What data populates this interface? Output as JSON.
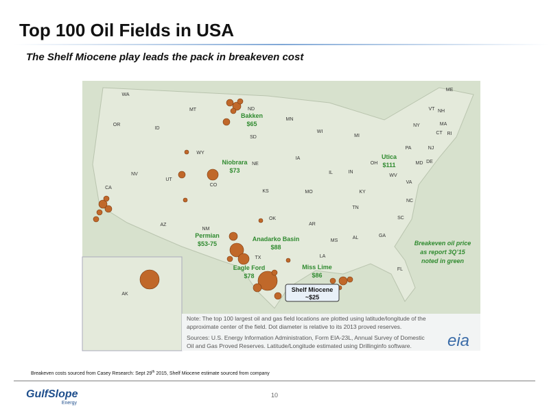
{
  "header": {
    "title": "Top 100 Oil Fields in USA",
    "subtitle": "The Shelf Miocene play leads the pack in breakeven cost"
  },
  "map": {
    "states": [
      "WA",
      "MT",
      "ND",
      "OR",
      "ID",
      "SD",
      "MN",
      "WI",
      "MI",
      "NY",
      "VT",
      "NH",
      "ME",
      "MA",
      "CT",
      "RI",
      "WY",
      "NE",
      "IA",
      "PA",
      "NJ",
      "OH",
      "MD",
      "DE",
      "NV",
      "UT",
      "CO",
      "IL",
      "IN",
      "WV",
      "VA",
      "CA",
      "KS",
      "MO",
      "KY",
      "NC",
      "TN",
      "AZ",
      "NM",
      "OK",
      "AR",
      "SC",
      "GA",
      "MS",
      "AL",
      "TX",
      "LA",
      "FL",
      "AK"
    ],
    "plays": [
      {
        "name": "Bakken",
        "price": "$65"
      },
      {
        "name": "Niobrara",
        "price": "$73"
      },
      {
        "name": "Utica",
        "price": "$111"
      },
      {
        "name": "Permian",
        "price": "$53-75"
      },
      {
        "name": "Anadarko Basin",
        "price": "$88"
      },
      {
        "name": "Eagle Ford",
        "price": "$78"
      },
      {
        "name": "Miss Lime",
        "price": "$86"
      }
    ],
    "callout": {
      "name": "Shelf Miocene",
      "price": "~$25"
    },
    "legend_note": [
      "Breakeven oil price",
      "as report 3Q’15",
      "noted in green"
    ],
    "note": [
      "Note: The top 100 largest oil and gas field locations are plotted using latitude/longitude of the",
      "approximate center of the field.  Dot diameter is relative to its 2013 proved reserves.",
      "Sources: U.S. Energy Information Administration, Form EIA-23L, Annual Survey of Domestic",
      "Oil and Gas Proved Reserves. Latitude/Longitude estimated using Drillinginfo software."
    ],
    "logo": "eia"
  },
  "footer": {
    "source": [
      "Breakeven costs sourced from Casey Research: Sept 29",
      "th",
      " 2015, Shelf Miocene estimate sourced from company"
    ],
    "page": "10",
    "logo": [
      "GulfSlope",
      "Energy"
    ]
  }
}
